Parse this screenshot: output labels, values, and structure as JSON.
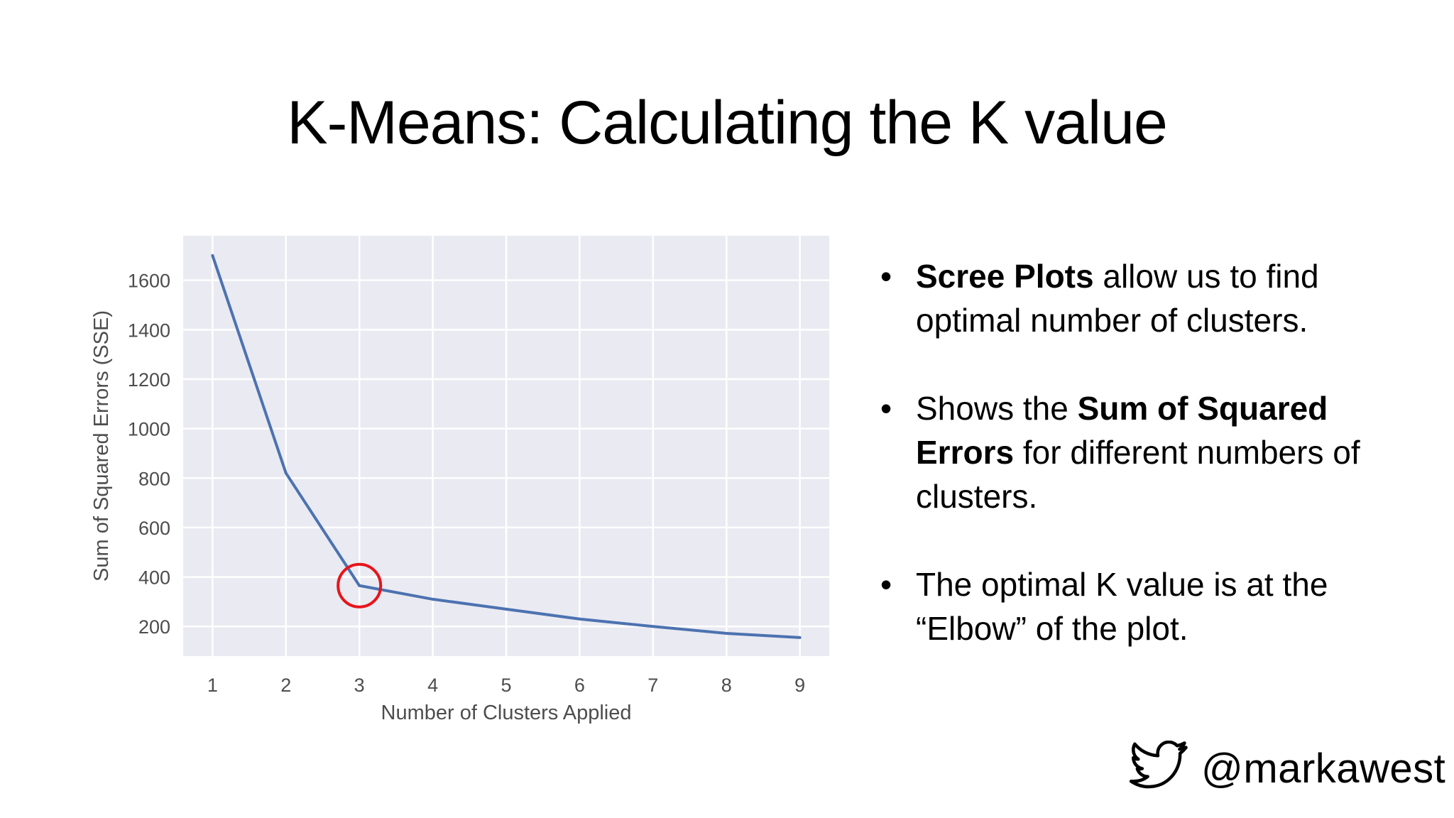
{
  "title": "K-Means: Calculating the K value",
  "bullets": [
    {
      "parts": [
        {
          "text": "Scree Plots",
          "bold": true
        },
        {
          "text": " allow us to find optimal number of clusters.",
          "bold": false
        }
      ]
    },
    {
      "parts": [
        {
          "text": "Shows the ",
          "bold": false
        },
        {
          "text": "Sum of Squared Errors",
          "bold": true
        },
        {
          "text": " for different numbers of clusters.",
          "bold": false
        }
      ]
    },
    {
      "parts": [
        {
          "text": "The optimal K value is at the “Elbow” of the plot.",
          "bold": false
        }
      ]
    }
  ],
  "bullet_symbol": "•",
  "social": {
    "icon": "twitter-bird-icon",
    "handle": "@markawest"
  },
  "chart_data": {
    "type": "line",
    "x": [
      1,
      2,
      3,
      4,
      5,
      6,
      7,
      8,
      9
    ],
    "series": [
      {
        "values": [
          1700,
          820,
          365,
          310,
          270,
          230,
          200,
          172,
          155
        ],
        "color": "#4c72b0"
      }
    ],
    "xlabel": "Number of Clusters Applied",
    "ylabel": "Sum of Squared Errors (SSE)",
    "xticks": [
      1,
      2,
      3,
      4,
      5,
      6,
      7,
      8,
      9
    ],
    "yticks": [
      200,
      400,
      600,
      800,
      1000,
      1200,
      1400,
      1600
    ],
    "xlim": [
      0.6,
      9.4
    ],
    "ylim": [
      80,
      1780
    ],
    "grid": true,
    "plot_background": "#eaeaf2",
    "highlight": {
      "x": 3,
      "y": 365,
      "shape": "circle",
      "color": "#e8141b"
    }
  }
}
